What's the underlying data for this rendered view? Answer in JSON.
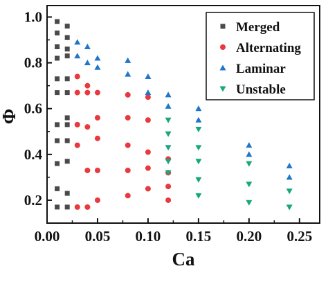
{
  "chart_data": {
    "type": "scatter",
    "xlabel": "Ca",
    "ylabel": "Φ",
    "xlim": [
      0.0,
      0.27
    ],
    "ylim": [
      0.1,
      1.05
    ],
    "xticks": [
      0.0,
      0.05,
      0.1,
      0.15,
      0.2,
      0.25
    ],
    "xtick_labels": [
      "0.00",
      "0.05",
      "0.10",
      "0.15",
      "0.20",
      "0.25"
    ],
    "yticks": [
      0.2,
      0.4,
      0.6,
      0.8,
      1.0
    ],
    "ytick_labels": [
      "0.2",
      "0.4",
      "0.6",
      "0.8",
      "1.0"
    ],
    "grid": false,
    "legend_position": "top-right",
    "series": [
      {
        "name": "Merged",
        "marker": "square",
        "color": "#4a4a4a",
        "points": [
          [
            0.01,
            0.98
          ],
          [
            0.01,
            0.93
          ],
          [
            0.01,
            0.87
          ],
          [
            0.01,
            0.82
          ],
          [
            0.01,
            0.73
          ],
          [
            0.01,
            0.67
          ],
          [
            0.01,
            0.53
          ],
          [
            0.01,
            0.46
          ],
          [
            0.01,
            0.36
          ],
          [
            0.01,
            0.25
          ],
          [
            0.01,
            0.17
          ],
          [
            0.02,
            0.96
          ],
          [
            0.02,
            0.91
          ],
          [
            0.02,
            0.86
          ],
          [
            0.02,
            0.83
          ],
          [
            0.02,
            0.73
          ],
          [
            0.02,
            0.67
          ],
          [
            0.02,
            0.56
          ],
          [
            0.02,
            0.53
          ],
          [
            0.02,
            0.46
          ],
          [
            0.02,
            0.37
          ],
          [
            0.02,
            0.23
          ],
          [
            0.02,
            0.17
          ]
        ]
      },
      {
        "name": "Alternating",
        "marker": "circle",
        "color": "#e8393f",
        "points": [
          [
            0.03,
            0.74
          ],
          [
            0.03,
            0.67
          ],
          [
            0.03,
            0.53
          ],
          [
            0.03,
            0.44
          ],
          [
            0.03,
            0.17
          ],
          [
            0.04,
            0.7
          ],
          [
            0.04,
            0.67
          ],
          [
            0.04,
            0.52
          ],
          [
            0.04,
            0.33
          ],
          [
            0.04,
            0.17
          ],
          [
            0.05,
            0.67
          ],
          [
            0.05,
            0.56
          ],
          [
            0.05,
            0.47
          ],
          [
            0.05,
            0.33
          ],
          [
            0.05,
            0.2
          ],
          [
            0.08,
            0.66
          ],
          [
            0.08,
            0.56
          ],
          [
            0.08,
            0.44
          ],
          [
            0.08,
            0.33
          ],
          [
            0.08,
            0.22
          ],
          [
            0.1,
            0.65
          ],
          [
            0.1,
            0.55
          ],
          [
            0.1,
            0.41
          ],
          [
            0.1,
            0.34
          ],
          [
            0.1,
            0.25
          ],
          [
            0.12,
            0.38
          ],
          [
            0.12,
            0.32
          ],
          [
            0.12,
            0.26
          ],
          [
            0.12,
            0.2
          ]
        ]
      },
      {
        "name": "Laminar",
        "marker": "triangle-up",
        "color": "#1e76c8",
        "points": [
          [
            0.03,
            0.89
          ],
          [
            0.03,
            0.83
          ],
          [
            0.04,
            0.87
          ],
          [
            0.04,
            0.8
          ],
          [
            0.05,
            0.82
          ],
          [
            0.05,
            0.78
          ],
          [
            0.08,
            0.81
          ],
          [
            0.08,
            0.75
          ],
          [
            0.1,
            0.74
          ],
          [
            0.1,
            0.67
          ],
          [
            0.12,
            0.66
          ],
          [
            0.12,
            0.61
          ],
          [
            0.15,
            0.6
          ],
          [
            0.15,
            0.55
          ],
          [
            0.2,
            0.44
          ],
          [
            0.2,
            0.4
          ],
          [
            0.24,
            0.35
          ],
          [
            0.24,
            0.3
          ]
        ]
      },
      {
        "name": "Unstable",
        "marker": "triangle-down",
        "color": "#17a77d",
        "points": [
          [
            0.12,
            0.55
          ],
          [
            0.12,
            0.49
          ],
          [
            0.12,
            0.43
          ],
          [
            0.12,
            0.37
          ],
          [
            0.12,
            0.32
          ],
          [
            0.15,
            0.51
          ],
          [
            0.15,
            0.43
          ],
          [
            0.15,
            0.37
          ],
          [
            0.15,
            0.29
          ],
          [
            0.15,
            0.22
          ],
          [
            0.2,
            0.36
          ],
          [
            0.2,
            0.27
          ],
          [
            0.2,
            0.19
          ],
          [
            0.24,
            0.24
          ],
          [
            0.24,
            0.17
          ]
        ]
      }
    ]
  }
}
